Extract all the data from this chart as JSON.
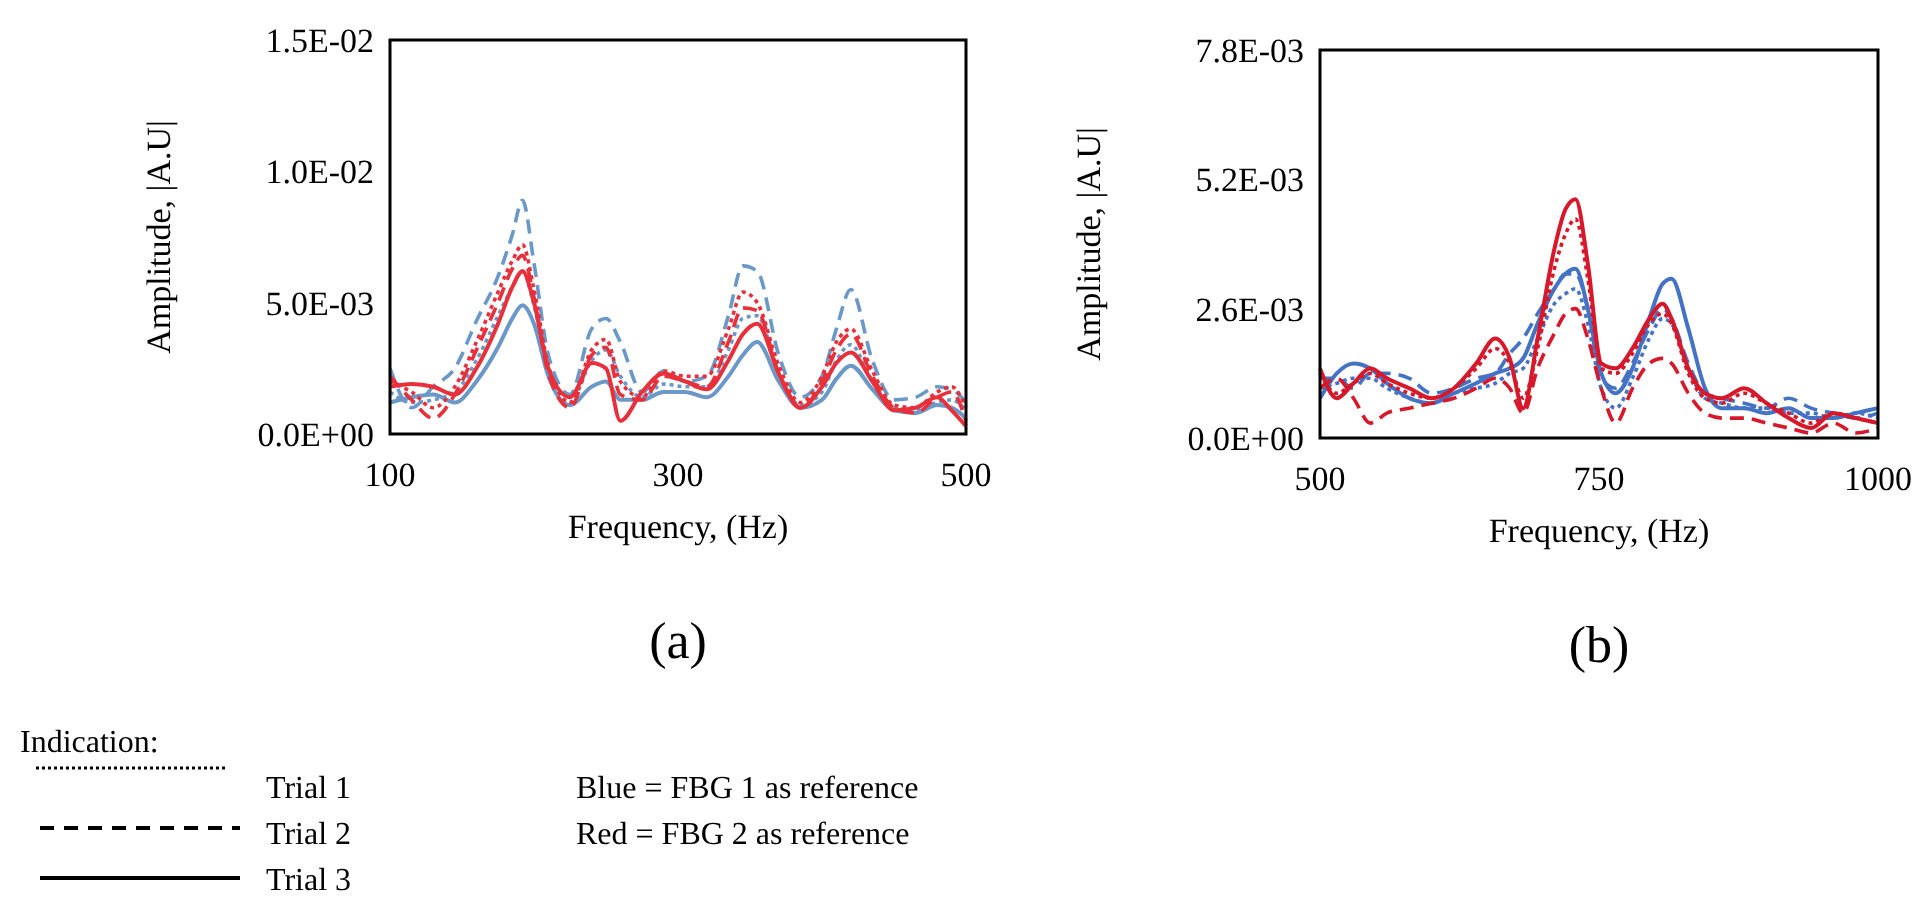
{
  "chart_data": [
    {
      "type": "line",
      "title": "(a)",
      "xlabel": "Frequency, (Hz)",
      "ylabel": "Amplitude, |A.U|",
      "xlim": [
        100,
        500
      ],
      "xticks": [
        100,
        300,
        500
      ],
      "ylim": [
        0,
        0.015
      ],
      "yticks": [
        {
          "value": 0,
          "label": "0.0E+00"
        },
        {
          "value": 0.005,
          "label": "5.0E-03"
        },
        {
          "value": 0.01,
          "label": "1.0E-02"
        },
        {
          "value": 0.015,
          "label": "1.5E-02"
        }
      ],
      "x": [
        100,
        115,
        130,
        145,
        160,
        175,
        185,
        192,
        200,
        210,
        225,
        240,
        250,
        260,
        275,
        290,
        305,
        320,
        335,
        345,
        355,
        370,
        385,
        400,
        410,
        420,
        435,
        450,
        465,
        480,
        490,
        500
      ],
      "series": [
        {
          "color": "#6a98c8",
          "line_style": "dotted",
          "values": [
            0.0016,
            0.0012,
            0.0013,
            0.0016,
            0.0028,
            0.0045,
            0.0056,
            0.0062,
            0.0049,
            0.0024,
            0.0012,
            0.0028,
            0.0032,
            0.0022,
            0.0014,
            0.0019,
            0.0018,
            0.0018,
            0.0032,
            0.0044,
            0.0045,
            0.0023,
            0.0011,
            0.0016,
            0.0028,
            0.0034,
            0.002,
            0.001,
            0.0009,
            0.0012,
            0.0013,
            0.0009
          ]
        },
        {
          "color": "#6a98c8",
          "line_style": "dashed",
          "values": [
            0.0025,
            0.001,
            0.0018,
            0.0025,
            0.0043,
            0.006,
            0.0076,
            0.0089,
            0.0065,
            0.003,
            0.0015,
            0.004,
            0.0044,
            0.0035,
            0.0016,
            0.0024,
            0.002,
            0.0022,
            0.0045,
            0.0064,
            0.0062,
            0.003,
            0.0014,
            0.0022,
            0.004,
            0.0055,
            0.0028,
            0.0013,
            0.0014,
            0.0018,
            0.0017,
            0.0012
          ]
        },
        {
          "color": "#6a98c8",
          "line_style": "solid",
          "values": [
            0.0012,
            0.0014,
            0.0015,
            0.0012,
            0.002,
            0.0033,
            0.0044,
            0.0049,
            0.0042,
            0.0022,
            0.0011,
            0.0018,
            0.002,
            0.0013,
            0.0013,
            0.0016,
            0.0016,
            0.0014,
            0.0022,
            0.003,
            0.0035,
            0.002,
            0.001,
            0.0013,
            0.0021,
            0.0026,
            0.0017,
            0.0009,
            0.0008,
            0.0011,
            0.001,
            0.0006
          ]
        },
        {
          "color": "#e8303a",
          "line_style": "dotted",
          "values": [
            0.002,
            0.0016,
            0.001,
            0.0018,
            0.0035,
            0.0054,
            0.0066,
            0.0072,
            0.0055,
            0.0026,
            0.0012,
            0.0032,
            0.0036,
            0.002,
            0.0014,
            0.0024,
            0.0022,
            0.0022,
            0.004,
            0.0054,
            0.005,
            0.0026,
            0.0012,
            0.0022,
            0.0035,
            0.004,
            0.0024,
            0.0011,
            0.001,
            0.0016,
            0.0018,
            0.001
          ]
        },
        {
          "color": "#e8303a",
          "line_style": "dashed",
          "values": [
            0.0022,
            0.0013,
            0.0006,
            0.0015,
            0.0032,
            0.005,
            0.0063,
            0.0068,
            0.0052,
            0.0023,
            0.001,
            0.003,
            0.0033,
            0.0015,
            0.0013,
            0.0022,
            0.002,
            0.0018,
            0.0035,
            0.0048,
            0.0047,
            0.0023,
            0.001,
            0.002,
            0.0032,
            0.0038,
            0.0022,
            0.001,
            0.0008,
            0.0014,
            0.0016,
            0.0005
          ]
        },
        {
          "color": "#e8303a",
          "line_style": "solid",
          "values": [
            0.0018,
            0.0019,
            0.0018,
            0.0015,
            0.0025,
            0.0042,
            0.0056,
            0.0062,
            0.005,
            0.0025,
            0.0014,
            0.0027,
            0.0025,
            0.0005,
            0.0016,
            0.0023,
            0.002,
            0.0017,
            0.0028,
            0.0038,
            0.0042,
            0.0023,
            0.001,
            0.0018,
            0.0027,
            0.0031,
            0.002,
            0.0009,
            0.001,
            0.0014,
            0.0009,
            0.0003
          ]
        }
      ]
    },
    {
      "type": "line",
      "title": "(b)",
      "xlabel": "Frequency, (Hz)",
      "ylabel": "Amplitude, |A.U|",
      "xlim": [
        500,
        1000
      ],
      "xticks": [
        500,
        750,
        1000
      ],
      "ylim": [
        0,
        0.0078
      ],
      "yticks": [
        {
          "value": 0,
          "label": "0.0E+00"
        },
        {
          "value": 0.0026,
          "label": "2.6E-03"
        },
        {
          "value": 0.0052,
          "label": "5.2E-03"
        },
        {
          "value": 0.0078,
          "label": "7.8E-03"
        }
      ],
      "x": [
        500,
        515,
        530,
        545,
        560,
        580,
        600,
        620,
        640,
        657,
        670,
        682,
        695,
        710,
        720,
        729,
        740,
        752,
        765,
        780,
        795,
        807,
        815,
        830,
        845,
        860,
        880,
        900,
        920,
        940,
        960,
        980,
        1000
      ],
      "series": [
        {
          "color": "#4472c4",
          "line_style": "dotted",
          "values": [
            0.001,
            0.0011,
            0.0012,
            0.0012,
            0.001,
            0.0008,
            0.0007,
            0.0009,
            0.001,
            0.0011,
            0.0013,
            0.0014,
            0.002,
            0.0027,
            0.0029,
            0.003,
            0.0023,
            0.001,
            0.0006,
            0.0012,
            0.002,
            0.0024,
            0.0023,
            0.0014,
            0.0008,
            0.0007,
            0.0006,
            0.0006,
            0.0005,
            0.0005,
            0.0004,
            0.0005,
            0.0004
          ]
        },
        {
          "color": "#4472c4",
          "line_style": "dashed",
          "values": [
            0.0012,
            0.0012,
            0.001,
            0.0013,
            0.0013,
            0.0012,
            0.0009,
            0.001,
            0.0012,
            0.0013,
            0.0017,
            0.002,
            0.0025,
            0.003,
            0.0033,
            0.0033,
            0.0026,
            0.0012,
            0.001,
            0.0015,
            0.0022,
            0.0026,
            0.0024,
            0.0015,
            0.0009,
            0.0008,
            0.0007,
            0.0006,
            0.0008,
            0.0006,
            0.0005,
            0.0004,
            0.0005
          ]
        },
        {
          "color": "#4472c4",
          "line_style": "solid",
          "values": [
            0.0008,
            0.0013,
            0.0015,
            0.0014,
            0.0011,
            0.0008,
            0.0007,
            0.0009,
            0.0011,
            0.0013,
            0.0014,
            0.0016,
            0.0023,
            0.003,
            0.0033,
            0.0034,
            0.0026,
            0.0013,
            0.0009,
            0.0014,
            0.0024,
            0.0031,
            0.0032,
            0.0022,
            0.001,
            0.0006,
            0.0006,
            0.0005,
            0.0006,
            0.0004,
            0.0004,
            0.0005,
            0.0006
          ]
        },
        {
          "color": "#d7182a",
          "line_style": "dotted",
          "values": [
            0.0013,
            0.0009,
            0.0011,
            0.0013,
            0.0011,
            0.0009,
            0.0008,
            0.001,
            0.0014,
            0.0018,
            0.0015,
            0.0008,
            0.0018,
            0.0034,
            0.0041,
            0.0044,
            0.0032,
            0.0014,
            0.0013,
            0.0017,
            0.0023,
            0.0025,
            0.0023,
            0.0013,
            0.0008,
            0.0007,
            0.0009,
            0.0007,
            0.0005,
            0.0003,
            0.0005,
            0.0004,
            0.0003
          ]
        },
        {
          "color": "#d7182a",
          "line_style": "dashed",
          "values": [
            0.001,
            0.0012,
            0.0008,
            0.0003,
            0.0005,
            0.0006,
            0.0007,
            0.0008,
            0.001,
            0.0012,
            0.001,
            0.0005,
            0.0014,
            0.0021,
            0.0025,
            0.0026,
            0.002,
            0.001,
            0.0003,
            0.001,
            0.0015,
            0.0016,
            0.0015,
            0.0009,
            0.0005,
            0.0004,
            0.0004,
            0.0003,
            0.0002,
            0.0001,
            0.0003,
            0.0001,
            0.0002
          ]
        },
        {
          "color": "#d7182a",
          "line_style": "solid",
          "values": [
            0.0014,
            0.0008,
            0.0011,
            0.0014,
            0.0012,
            0.001,
            0.0008,
            0.001,
            0.0015,
            0.002,
            0.0016,
            0.0006,
            0.002,
            0.0038,
            0.0046,
            0.0048,
            0.0035,
            0.0015,
            0.0014,
            0.0018,
            0.0024,
            0.0027,
            0.0024,
            0.0014,
            0.0009,
            0.0008,
            0.001,
            0.0007,
            0.0004,
            0.0002,
            0.0005,
            0.0004,
            0.0003
          ]
        }
      ]
    },
    {
      "type": "other",
      "annotations": [
        "Indication:",
        "Trial 1",
        "Trial 2",
        "Trial 3",
        "Blue = FBG 1 as reference",
        "Red = FBG 2 as reference"
      ]
    }
  ]
}
